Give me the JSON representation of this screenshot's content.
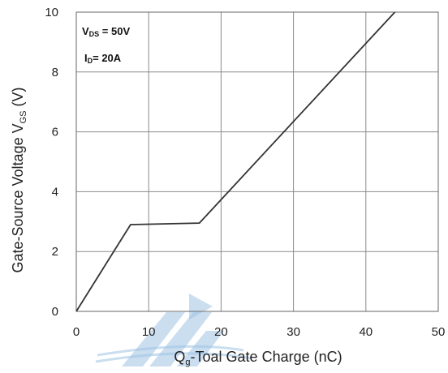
{
  "chart_data": {
    "type": "line",
    "title": "",
    "xlabel": {
      "main": "Q",
      "sub": "g",
      "rest": "-Toal Gate Charge  (nC)"
    },
    "ylabel": {
      "main": "Gate-Source Voltage V",
      "sub": "GS",
      "rest": " (V)"
    },
    "xlim": [
      0,
      50
    ],
    "ylim": [
      0,
      10
    ],
    "x_ticks": [
      "0",
      "10",
      "20",
      "30",
      "40",
      "50"
    ],
    "y_ticks": [
      "0",
      "2",
      "4",
      "6",
      "8",
      "10"
    ],
    "grid": true,
    "annotations": [
      {
        "main": "V",
        "sub": "DS",
        "rest": " = 50V"
      },
      {
        "main": "I",
        "sub": "D",
        "rest": "= 20A"
      }
    ],
    "series": [
      {
        "x": [
          0,
          7.5,
          17,
          44
        ],
        "y": [
          0,
          2.9,
          2.95,
          10
        ],
        "color": "#333333"
      }
    ],
    "watermark_color": "#9fc3e3"
  }
}
